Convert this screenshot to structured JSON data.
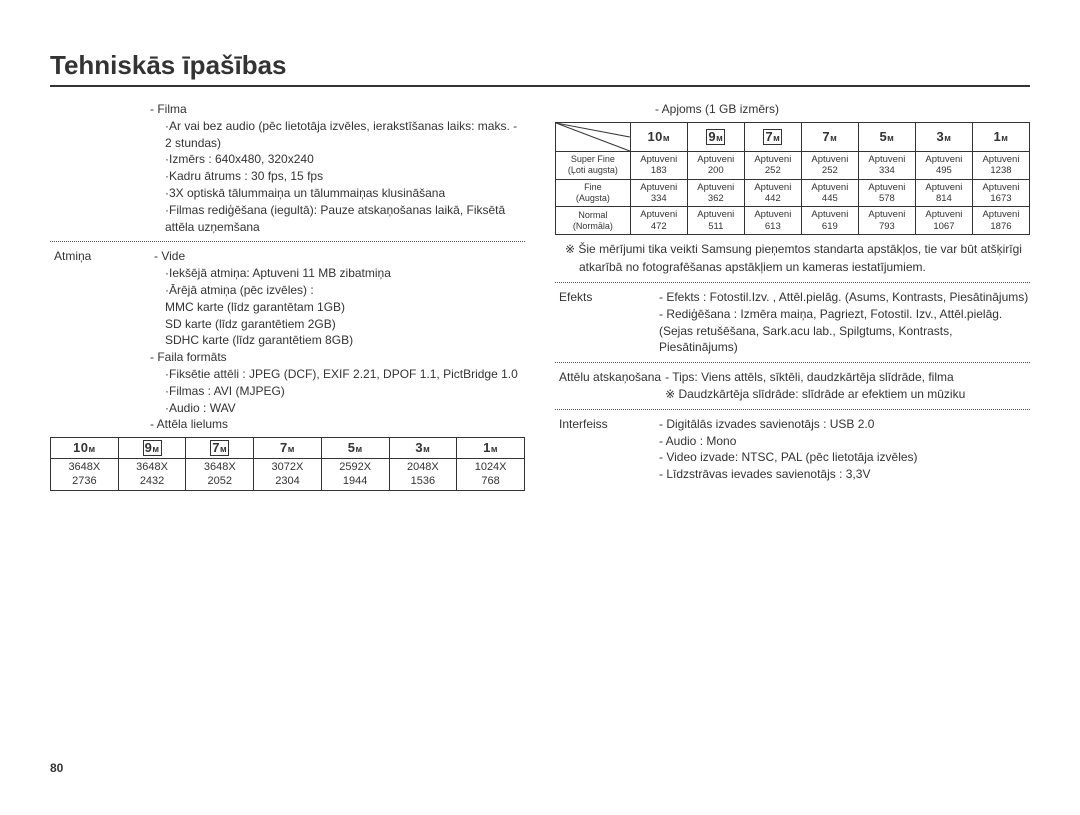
{
  "title": "Tehniskās īpašības",
  "page_number": "80",
  "left": {
    "filma_header": "- Filma",
    "filma_lines": [
      "·Ar vai bez audio (pēc lietotāja izvēles, ierakstīšanas laiks: maks. - 2 stundas)",
      "·Izmērs : 640x480, 320x240",
      "·Kadru ātrums : 30 fps, 15 fps",
      "·3X optiskā tālummaiņa un tālummaiņas klusināšana",
      "·Filmas rediģēšana (iegultā): Pauze atskaņošanas laikā, Fiksētā attēla uzņemšana"
    ],
    "atmina_label": "Atmiņa",
    "vide_header": "- Vide",
    "vide_lines": [
      "·Iekšējā atmiņa: Aptuveni 11 MB zibatmiņa",
      "·Ārējā atmiņa (pēc izvēles) :",
      "  MMC karte (līdz garantētam 1GB)",
      "  SD karte (līdz garantētiem 2GB)",
      "  SDHC karte (līdz garantētiem 8GB)"
    ],
    "faila_header": "- Faila formāts",
    "faila_lines": [
      "·Fiksētie attēli : JPEG (DCF), EXIF 2.21, DPOF 1.1, PictBridge 1.0",
      "·Filmas : AVI (MJPEG)",
      "·Audio : WAV"
    ],
    "attela_header": "- Attēla lielums",
    "size_table": {
      "headers": [
        "10м",
        "9м",
        "7м",
        "7м",
        "5м",
        "3м",
        "1м"
      ],
      "header_box": [
        false,
        true,
        true,
        false,
        false,
        false,
        false
      ],
      "rows": [
        [
          "3648X 2736",
          "3648X 2432",
          "3648X 2052",
          "3072X 2304",
          "2592X 1944",
          "2048X 1536",
          "1024X 768"
        ]
      ]
    }
  },
  "right": {
    "apjoms_header": "- Apjoms (1 GB izmērs)",
    "capacity_table": {
      "col_headers": [
        "10м",
        "9м",
        "7м",
        "7м",
        "5м",
        "3м",
        "1м"
      ],
      "col_header_box": [
        false,
        true,
        true,
        false,
        false,
        false,
        false
      ],
      "row_headers": [
        {
          "main": "Super Fine",
          "sub": "(Ļoti augsta)"
        },
        {
          "main": "Fine",
          "sub": "(Augsta)"
        },
        {
          "main": "Normal",
          "sub": "(Normāla)"
        }
      ],
      "cells": [
        [
          "Aptuveni 183",
          "Aptuveni 200",
          "Aptuveni 252",
          "Aptuveni 252",
          "Aptuveni 334",
          "Aptuveni 495",
          "Aptuveni 1238"
        ],
        [
          "Aptuveni 334",
          "Aptuveni 362",
          "Aptuveni 442",
          "Aptuveni 445",
          "Aptuveni 578",
          "Aptuveni 814",
          "Aptuveni 1673"
        ],
        [
          "Aptuveni 472",
          "Aptuveni 511",
          "Aptuveni 613",
          "Aptuveni 619",
          "Aptuveni 793",
          "Aptuveni 1067",
          "Aptuveni 1876"
        ]
      ]
    },
    "note1": "※ Šie mērījumi tika veikti Samsung pieņemtos standarta apstākļos, tie var būt atšķirīgi atkarībā no fotografēšanas apstākļiem un kameras iestatījumiem.",
    "efekts_label": "Efekts",
    "efekts_lines": [
      "- Efekts : Fotostil.Izv. , Attēl.pielāg. (Asums, Kontrasts, Piesātinājums)",
      "- Rediģēšana : Izmēra maiņa, Pagriezt, Fotostil. Izv., Attēl.pielāg. (Sejas retušēšana, Sark.acu lab., Spilgtums, Kontrasts, Piesātinājums)"
    ],
    "atskanosana_label": "Attēlu atskaņošana",
    "atskanosana_lines": [
      "- Tips: Viens attēls, sīktēli, daudzkārtēja slīdrāde, filma",
      "※ Daudzkārtēja slīdrāde: slīdrāde ar efektiem un mūziku"
    ],
    "interfeiss_label": "Interfeiss",
    "interfeiss_lines": [
      "- Digitālās izvades savienotājs : USB 2.0",
      "- Audio : Mono",
      "- Video izvade: NTSC, PAL (pēc lietotāja izvēles)",
      "- Līdzstrāvas ievades savienotājs : 3,3V"
    ]
  }
}
